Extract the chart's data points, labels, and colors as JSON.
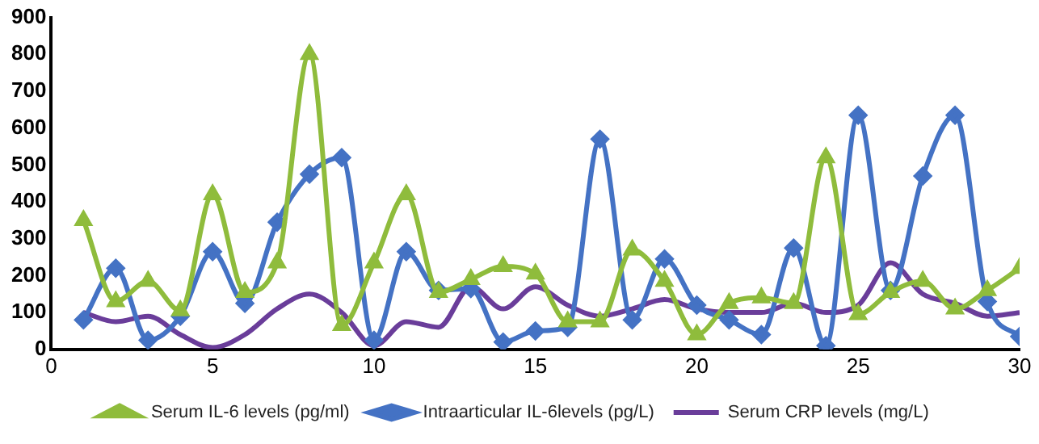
{
  "chart_data": {
    "type": "line",
    "x": [
      1,
      2,
      3,
      4,
      5,
      6,
      7,
      8,
      9,
      10,
      11,
      12,
      13,
      14,
      15,
      16,
      17,
      18,
      19,
      20,
      21,
      22,
      23,
      24,
      25,
      26,
      27,
      28,
      29,
      30
    ],
    "series": [
      {
        "name": "Intraarticular IL-6levels (pg/L)",
        "color": "#4472c4",
        "marker": "diamond",
        "values": [
          80,
          220,
          25,
          90,
          265,
          125,
          345,
          475,
          520,
          25,
          265,
          160,
          165,
          20,
          50,
          60,
          570,
          80,
          245,
          120,
          80,
          40,
          275,
          10,
          635,
          160,
          470,
          635,
          130,
          35
        ]
      },
      {
        "name": "Serum IL-6 levels (pg/ml)",
        "color": "#8fbc3c",
        "marker": "triangle",
        "values": [
          350,
          130,
          185,
          105,
          420,
          155,
          235,
          800,
          65,
          235,
          420,
          155,
          190,
          225,
          205,
          75,
          75,
          270,
          185,
          40,
          125,
          140,
          125,
          520,
          95,
          155,
          185,
          110,
          160,
          220
        ]
      },
      {
        "name": "Serum CRP levels (mg/L)",
        "color": "#6a3d9a",
        "marker": "none",
        "values": [
          100,
          75,
          90,
          40,
          5,
          40,
          110,
          150,
          100,
          10,
          75,
          60,
          170,
          110,
          170,
          120,
          90,
          110,
          135,
          110,
          100,
          100,
          125,
          100,
          120,
          235,
          150,
          125,
          90,
          100
        ]
      }
    ],
    "xlim": [
      0,
      30
    ],
    "xticks": [
      0,
      5,
      10,
      15,
      20,
      25,
      30
    ],
    "ylim": [
      0,
      900
    ],
    "yticks": [
      0,
      100,
      200,
      300,
      400,
      500,
      600,
      700,
      800,
      900
    ],
    "grid": false,
    "legend": "bottom",
    "line_style": "solid"
  }
}
